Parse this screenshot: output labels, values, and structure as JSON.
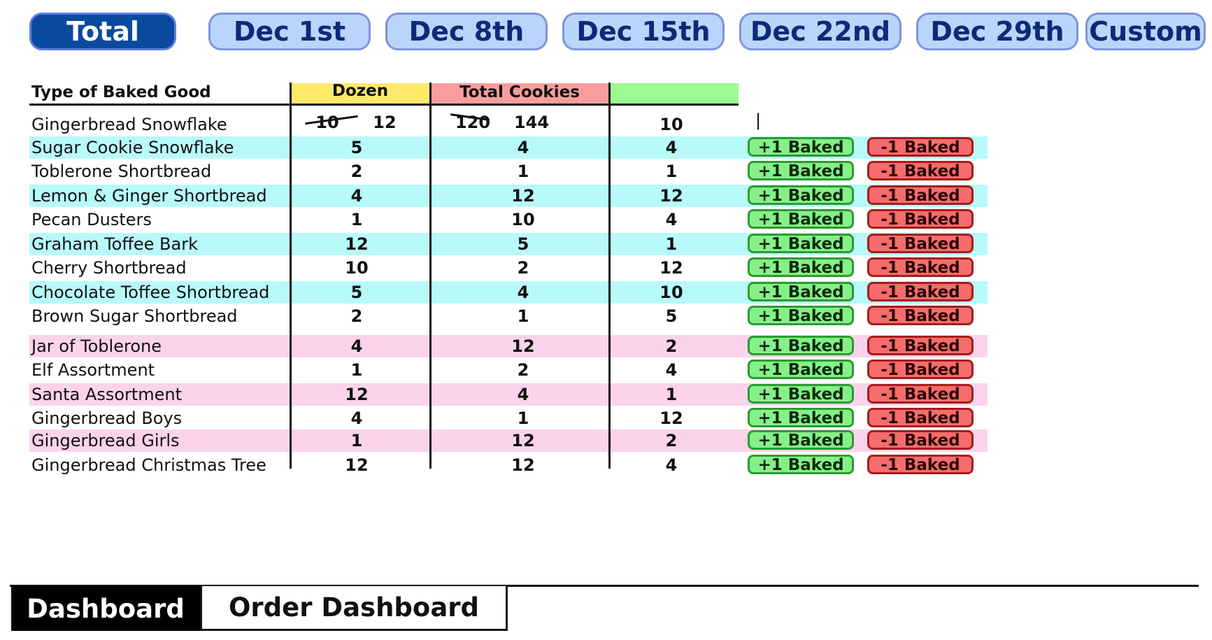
{
  "tabs": [
    "Total",
    "Dec 1st",
    "Dec 8th",
    "Dec 15th",
    "Dec 22nd",
    "Dec 29th",
    "Custom"
  ],
  "table": {
    "headers": {
      "type": "Type of Baked Good",
      "dozen": "Dozen",
      "total": "Total Cookies",
      "baked": ""
    },
    "header_colors": {
      "dozen": "#fde96a",
      "total": "#f89d9d",
      "baked": "#9bfb93"
    },
    "row_colors": {
      "cyan": "#b8fafa",
      "pink": "#fcd3ec"
    },
    "first_row": {
      "name": "Gingerbread Snowflake",
      "dozen_old": "10",
      "dozen": "12",
      "total_old": "120",
      "total": "144",
      "baked": "10",
      "cursor": "|"
    },
    "rows": [
      {
        "name": "Sugar Cookie Snowflake",
        "dozen": "5",
        "total": "4",
        "baked": "4"
      },
      {
        "name": "Toblerone Shortbread",
        "dozen": "2",
        "total": "1",
        "baked": "1"
      },
      {
        "name": "Lemon & Ginger Shortbread",
        "dozen": "4",
        "total": "12",
        "baked": "12"
      },
      {
        "name": "Pecan Dusters",
        "dozen": "1",
        "total": "10",
        "baked": "4"
      },
      {
        "name": "Graham Toffee Bark",
        "dozen": "12",
        "total": "5",
        "baked": "1"
      },
      {
        "name": "Cherry Shortbread",
        "dozen": "10",
        "total": "2",
        "baked": "12"
      },
      {
        "name": "Chocolate Toffee Shortbread",
        "dozen": "5",
        "total": "4",
        "baked": "10"
      },
      {
        "name": "Brown Sugar Shortbread",
        "dozen": "2",
        "total": "1",
        "baked": "5"
      },
      {
        "name": "Jar of Toblerone",
        "dozen": "4",
        "total": "12",
        "baked": "2"
      },
      {
        "name": "Elf Assortment",
        "dozen": "1",
        "total": "2",
        "baked": "4"
      },
      {
        "name": "Santa Assortment",
        "dozen": "12",
        "total": "4",
        "baked": "1"
      },
      {
        "name": "Gingerbread Boys",
        "dozen": "4",
        "total": "1",
        "baked": "12"
      },
      {
        "name": "Gingerbread Girls",
        "dozen": "1",
        "total": "12",
        "baked": "2"
      },
      {
        "name": "Gingerbread Christmas Tree",
        "dozen": "12",
        "total": "12",
        "baked": "4"
      }
    ],
    "plus_label": "+1 Baked",
    "minus_label": "-1 Baked"
  },
  "bottom_tabs": [
    "Dashboard",
    "Order Dashboard"
  ]
}
